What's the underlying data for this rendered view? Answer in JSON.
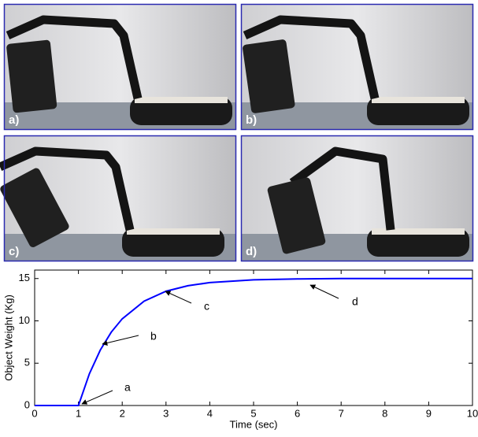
{
  "photos": [
    "a)",
    "b)",
    "c)",
    "d)"
  ],
  "chart_data": {
    "type": "line",
    "x_label": "Time (sec)",
    "y_label": "Object Weight (Kg)",
    "x": [
      0,
      1,
      1.25,
      1.5,
      1.75,
      2,
      2.5,
      3,
      3.5,
      4,
      5,
      6,
      7,
      8,
      9,
      10
    ],
    "series": [
      {
        "color": "#0000ff",
        "values": [
          0,
          0,
          3.75,
          6.56,
          8.67,
          10.24,
          12.33,
          13.5,
          14.15,
          14.52,
          14.85,
          14.95,
          15,
          15,
          15,
          15
        ]
      }
    ],
    "xlim": [
      0,
      10
    ],
    "xticks": [
      0,
      1,
      2,
      3,
      4,
      5,
      6,
      7,
      8,
      9,
      10
    ],
    "ylim": [
      0,
      16
    ],
    "yticks": [
      0,
      5,
      10,
      15
    ],
    "annotations": [
      "a",
      "b",
      "c",
      "d"
    ]
  }
}
